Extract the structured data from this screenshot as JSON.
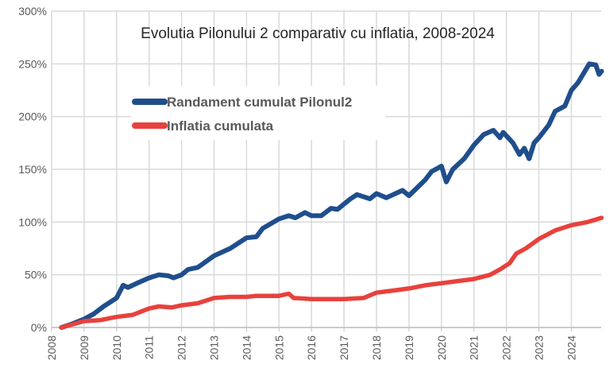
{
  "chart_data": {
    "type": "line",
    "title": "Evolutia Pilonului 2 comparativ cu inflatia, 2008-2024",
    "xlabel": "",
    "ylabel": "",
    "xlim": [
      2008,
      2024.93
    ],
    "ylim": [
      0,
      300
    ],
    "x_ticks": [
      "2008",
      "2009",
      "2010",
      "2011",
      "2012",
      "2013",
      "2014",
      "2015",
      "2016",
      "2017",
      "2018",
      "2019",
      "2020",
      "2021",
      "2022",
      "2023",
      "2024"
    ],
    "y_ticks": [
      "0%",
      "50%",
      "100%",
      "150%",
      "200%",
      "250%",
      "300%"
    ],
    "grid": true,
    "legend_position": "upper-left",
    "series": [
      {
        "name": "Randament cumulat Pilonul2",
        "color": "#1F4E8C",
        "x": [
          2008.3,
          2008.6,
          2009,
          2009.3,
          2009.6,
          2010,
          2010.2,
          2010.35,
          2010.7,
          2011,
          2011.3,
          2011.6,
          2011.75,
          2012,
          2012.2,
          2012.5,
          2013,
          2013.5,
          2014,
          2014.3,
          2014.5,
          2015,
          2015.3,
          2015.5,
          2015.8,
          2016,
          2016.3,
          2016.6,
          2016.8,
          2017.2,
          2017.4,
          2017.8,
          2018,
          2018.3,
          2018.8,
          2019,
          2019.5,
          2019.7,
          2020,
          2020.15,
          2020.35,
          2020.7,
          2021,
          2021.3,
          2021.6,
          2021.8,
          2021.9,
          2022.2,
          2022.4,
          2022.55,
          2022.7,
          2022.85,
          2023,
          2023.3,
          2023.5,
          2023.8,
          2024,
          2024.2,
          2024.55,
          2024.75,
          2024.85,
          2024.93
        ],
        "values": [
          0,
          3,
          8,
          13,
          20,
          28,
          40,
          38,
          43,
          47,
          50,
          49,
          47,
          50,
          55,
          57,
          68,
          75,
          85,
          86,
          94,
          103,
          106,
          104,
          109,
          106,
          106,
          113,
          112,
          122,
          126,
          122,
          127,
          123,
          130,
          125,
          140,
          148,
          153,
          138,
          150,
          160,
          173,
          183,
          187,
          180,
          185,
          175,
          164,
          170,
          160,
          175,
          180,
          192,
          205,
          210,
          225,
          232,
          250,
          249,
          240,
          243
        ]
      },
      {
        "name": "Inflatia cumulata",
        "color": "#E8413C",
        "x": [
          2008.3,
          2009,
          2009.5,
          2010,
          2010.5,
          2011,
          2011.3,
          2011.7,
          2012,
          2012.5,
          2013,
          2013.5,
          2014,
          2014.3,
          2015,
          2015.3,
          2015.45,
          2016,
          2017,
          2017.6,
          2018,
          2018.5,
          2019,
          2019.5,
          2020,
          2020.5,
          2021,
          2021.5,
          2021.8,
          2022.1,
          2022.3,
          2022.6,
          2023,
          2023.5,
          2024,
          2024.5,
          2024.93
        ],
        "values": [
          0,
          6,
          7,
          10,
          12,
          18,
          20,
          19,
          21,
          23,
          28,
          29,
          29,
          30,
          30,
          32,
          28,
          27,
          27,
          28,
          33,
          35,
          37,
          40,
          42,
          44,
          46,
          50,
          55,
          61,
          70,
          75,
          84,
          92,
          97,
          100,
          104
        ]
      }
    ]
  }
}
